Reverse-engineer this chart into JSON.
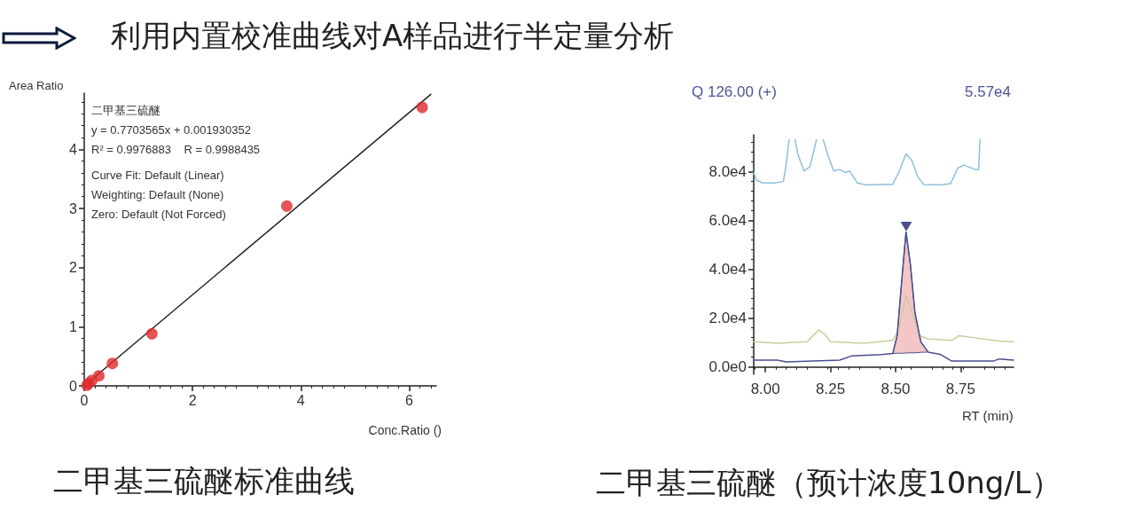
{
  "chart_data": [
    {
      "type": "scatter",
      "title": "利用内置校准曲线对A样品进行半定量分析",
      "subtitle": "二甲基三硫醚标准曲线",
      "xlabel": "Conc.Ratio ()",
      "ylabel": "Area Ratio",
      "annotations": [
        "二甲基三硫醚",
        "y = 0.7703565x + 0.001930352",
        "R² = 0.9976883    R = 0.9988435",
        "Curve Fit: Default (Linear)",
        "Weighting: Default (None)",
        "Zero: Default (Not Forced)"
      ],
      "series": [
        {
          "color": "#e02b2b",
          "marker": "circle",
          "x": [
            0.05,
            0.08,
            0.14,
            0.27,
            0.52,
            1.25,
            3.74,
            6.24
          ],
          "values": [
            0.01,
            0.04,
            0.09,
            0.17,
            0.38,
            0.88,
            3.04,
            4.71
          ]
        },
        {
          "type": "line",
          "color": "#222222",
          "marker": "none",
          "line_style": "solid",
          "x": [
            0,
            6.4
          ],
          "values": [
            0,
            4.93
          ]
        }
      ],
      "xlim": [
        0,
        6.5
      ],
      "xticks": [
        0,
        2,
        4,
        6
      ],
      "ylim": [
        0,
        4.95
      ],
      "yticks": [
        0,
        1,
        2,
        3,
        4
      ],
      "grid": false
    },
    {
      "type": "line",
      "title": "Q 126.00 (+)",
      "subtitle": "5.57e4",
      "xlabel": "RT (min)",
      "annotations": [
        "二甲基三硫醚（预计浓度10ng/L）"
      ],
      "series": [
        {
          "color": "#8ec0dc",
          "x": [
            7.955,
            7.966,
            7.989,
            8.035,
            8.069,
            8.08,
            8.091,
            8.1,
            8.114,
            8.125,
            8.148,
            8.171,
            8.188,
            8.196,
            8.21,
            8.222,
            8.239,
            8.262,
            8.285,
            8.307,
            8.324,
            8.353,
            8.387,
            8.444,
            8.489,
            8.512,
            8.54,
            8.563,
            8.585,
            8.608,
            8.671,
            8.711,
            8.739,
            8.762,
            8.807,
            8.819,
            8.824
          ],
          "values": [
            79600,
            76500,
            75300,
            75300,
            75900,
            83200,
            93000,
            null,
            93000,
            86900,
            80200,
            82000,
            89300,
            93000,
            null,
            93000,
            86900,
            80200,
            80800,
            79600,
            80200,
            75300,
            74500,
            74700,
            74700,
            79600,
            87200,
            84400,
            77800,
            74700,
            74500,
            75000,
            81400,
            82600,
            80800,
            80800,
            93000
          ]
        },
        {
          "color": "#c9cc9e",
          "x": [
            7.955,
            8.046,
            8.16,
            8.182,
            8.205,
            8.228,
            8.25,
            8.375,
            8.489,
            8.512,
            8.54,
            8.563,
            8.591,
            8.625,
            8.716,
            8.744,
            8.785,
            8.898,
            8.953
          ],
          "values": [
            10300,
            9700,
            10300,
            12800,
            15200,
            13400,
            10300,
            9700,
            10900,
            15200,
            29200,
            22500,
            12800,
            11500,
            10900,
            12800,
            12200,
            10600,
            10300
          ]
        },
        {
          "color": "#4a4f8f",
          "x": [
            7.955,
            8.046,
            8.08,
            8.285,
            8.33,
            8.444,
            8.489,
            8.506,
            8.523,
            8.54,
            8.557,
            8.574,
            8.597,
            8.625,
            8.671,
            8.716,
            8.875,
            8.898,
            8.953
          ],
          "values": [
            2800,
            2800,
            2100,
            2800,
            4500,
            5100,
            5500,
            12800,
            34600,
            55300,
            41900,
            22500,
            10300,
            6100,
            5200,
            2400,
            2400,
            3300,
            2800
          ],
          "lower": [
            null,
            null,
            null,
            null,
            null,
            null,
            5500,
            5600,
            5600,
            5700,
            5800,
            5800,
            6000,
            6100,
            null,
            null,
            null,
            null,
            null
          ],
          "upper": [
            null,
            null,
            null,
            null,
            null,
            null,
            5500,
            12800,
            34600,
            55300,
            41900,
            22500,
            10300,
            6100,
            null,
            null,
            null,
            null,
            null
          ]
        }
      ],
      "xlim": [
        7.955,
        8.953
      ],
      "xticks": [
        {
          "value": 8,
          "label": "8.00"
        },
        {
          "value": 8.25,
          "label": "8.25"
        },
        {
          "value": 8.5,
          "label": "8.50"
        },
        {
          "value": 8.75,
          "label": "8.75"
        }
      ],
      "ylim": [
        -3000,
        95000
      ],
      "yticks": [
        {
          "value": 0,
          "label": "0.0e0"
        },
        {
          "value": 20000,
          "label": "2.0e4"
        },
        {
          "value": 40000,
          "label": "4.0e4"
        },
        {
          "value": 60000,
          "label": "6.0e4"
        },
        {
          "value": 80000,
          "label": "8.0e4"
        }
      ],
      "grid": false
    }
  ]
}
